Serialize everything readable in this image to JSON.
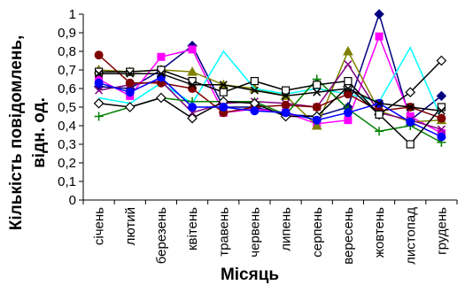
{
  "chart_data": {
    "type": "line",
    "title": "",
    "xlabel": "Місяць",
    "ylabel_line1": "Кількість повідомлень,",
    "ylabel_line2": "відн. од.",
    "ylim": [
      0,
      1
    ],
    "yticks": [
      "0",
      "0,1",
      "0,2",
      "0,3",
      "0,4",
      "0,5",
      "0,6",
      "0,7",
      "0,8",
      "0,9",
      "1"
    ],
    "categories": [
      "січень",
      "лютий",
      "березень",
      "квітень",
      "травень",
      "червень",
      "липень",
      "серпень",
      "вересень",
      "жовтень",
      "листопад",
      "грудень"
    ],
    "legend": "none",
    "grid": "none",
    "series": [
      {
        "color": "#000080",
        "marker": "diamond",
        "values": [
          0.61,
          0.6,
          0.7,
          0.83,
          0.5,
          0.5,
          0.46,
          0.45,
          0.5,
          1.0,
          0.43,
          0.56
        ]
      },
      {
        "color": "#ff00ff",
        "marker": "square",
        "values": [
          0.65,
          0.56,
          0.77,
          0.81,
          0.47,
          0.49,
          0.47,
          0.41,
          0.43,
          0.88,
          0.45,
          0.36
        ]
      },
      {
        "color": "#808000",
        "marker": "triangle",
        "values": [
          0.7,
          0.69,
          0.7,
          0.69,
          0.62,
          0.6,
          0.56,
          0.4,
          0.8,
          0.48,
          0.42,
          0.43
        ]
      },
      {
        "color": "#00ffff",
        "marker": "none",
        "values": [
          0.55,
          0.52,
          0.63,
          0.52,
          0.8,
          0.6,
          0.57,
          0.6,
          0.57,
          0.53,
          0.82,
          0.44
        ]
      },
      {
        "color": "#800080",
        "marker": "x",
        "values": [
          0.59,
          0.62,
          0.64,
          0.47,
          0.52,
          0.53,
          0.52,
          0.5,
          0.73,
          0.47,
          0.43,
          0.38
        ]
      },
      {
        "color": "#800000",
        "marker": "circle",
        "values": [
          0.78,
          0.63,
          0.63,
          0.6,
          0.47,
          0.5,
          0.51,
          0.5,
          0.57,
          0.48,
          0.5,
          0.44
        ]
      },
      {
        "color": "#008000",
        "marker": "plus",
        "values": [
          0.45,
          0.5,
          0.55,
          0.53,
          0.53,
          0.53,
          0.46,
          0.65,
          0.49,
          0.37,
          0.4,
          0.31
        ]
      },
      {
        "color": "#000000",
        "marker": "diamond-open",
        "values": [
          0.52,
          0.5,
          0.55,
          0.44,
          0.53,
          0.52,
          0.45,
          0.45,
          0.61,
          0.46,
          0.58,
          0.75
        ]
      },
      {
        "color": "#0000ff",
        "marker": "circle",
        "values": [
          0.63,
          0.58,
          0.66,
          0.5,
          0.5,
          0.48,
          0.47,
          0.43,
          0.47,
          0.52,
          0.42,
          0.34
        ]
      },
      {
        "color": "#000000",
        "marker": "square-open",
        "values": [
          0.69,
          0.69,
          0.7,
          0.64,
          0.58,
          0.64,
          0.59,
          0.62,
          0.64,
          0.46,
          0.3,
          0.5
        ]
      },
      {
        "color": "#000000",
        "marker": "x",
        "values": [
          0.68,
          0.68,
          0.68,
          0.62,
          0.62,
          0.59,
          0.56,
          0.58,
          0.6,
          0.52,
          0.5,
          0.48
        ]
      }
    ]
  }
}
